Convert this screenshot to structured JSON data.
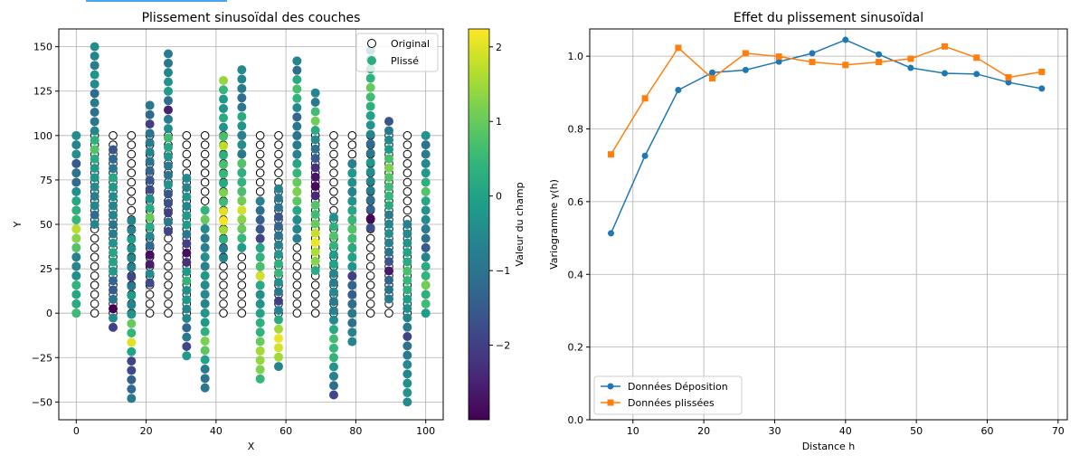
{
  "chart_data": [
    {
      "type": "scatter",
      "title": "Plissement sinusoïdal des couches",
      "xlabel": "X",
      "ylabel": "Y",
      "xlim": [
        -5,
        105
      ],
      "ylim": [
        -60,
        160
      ],
      "xticks": [
        0,
        20,
        40,
        60,
        80,
        100
      ],
      "yticks": [
        -50,
        -25,
        0,
        25,
        50,
        75,
        100,
        125,
        150
      ],
      "grid": true,
      "legend": {
        "placement": "top-right",
        "entries": [
          "Original",
          "Plissé"
        ]
      },
      "original": {
        "marker": "open-circle",
        "x": [
          0,
          5.26,
          10.53,
          15.79,
          21.05,
          26.32,
          31.58,
          36.84,
          42.11,
          47.37,
          52.63,
          57.89,
          63.16,
          68.42,
          73.68,
          78.95,
          84.21,
          89.47,
          94.74,
          100
        ],
        "y": [
          0,
          5.26,
          10.53,
          15.79,
          21.05,
          26.32,
          31.58,
          36.84,
          42.11,
          47.37,
          52.63,
          57.89,
          63.16,
          68.42,
          73.68,
          78.95,
          84.21,
          89.47,
          94.74,
          100
        ]
      },
      "plisse": {
        "marker": "filled-circle",
        "colormap": "viridis",
        "column_y_offset": [
          0,
          50,
          -8,
          -48,
          17,
          46,
          -24,
          -42,
          31,
          37,
          -37,
          -30,
          42,
          24,
          -46,
          -16,
          48,
          8,
          -50,
          0
        ],
        "values": [
          [
            0.6,
            0.2,
            0.1,
            0.4,
            -0.4,
            -0.6,
            -0.7,
            0.8,
            1.3,
            1.7,
            0.5,
            0.3,
            0.1,
            -0.4,
            -1.2,
            -1.0,
            -1.5,
            -0.4,
            -0.6,
            -0.4
          ],
          [
            -0.6,
            -1.2,
            -0.6,
            -0.8,
            -0.5,
            -0.3,
            -0.2,
            0.2,
            0.8,
            0.3,
            -0.6,
            -0.9,
            -1.1,
            -0.8,
            -1.2,
            -0.5,
            -0.3,
            -0.8,
            -0.6,
            -0.4
          ],
          [
            -2.0,
            -0.5,
            -3.0,
            -1.0,
            -1.5,
            -1.3,
            -0.2,
            0.0,
            0.1,
            -0.3,
            -0.8,
            -1.0,
            -0.6,
            -0.6,
            -0.5,
            -0.2,
            0.1,
            -0.9,
            -1.2,
            -1.6
          ],
          [
            -0.9,
            -1.2,
            -1.4,
            -1.8,
            -1.9,
            0.0,
            2.0,
            0.4,
            1.0,
            -0.3,
            -0.6,
            -0.1,
            -0.9,
            -1.9,
            -0.7,
            -0.6,
            -0.4,
            -0.1,
            -0.7,
            -0.6
          ],
          [
            -1.8,
            -0.5,
            -2.6,
            -2.8,
            -1.2,
            -0.6,
            0.2,
            1.0,
            0.2,
            -0.4,
            -1.8,
            -1.6,
            -1.3,
            -1.0,
            -0.6,
            -0.8,
            -1.0,
            -2.0,
            -1.2,
            -0.9
          ],
          [
            -1.9,
            -0.9,
            -2.0,
            -1.7,
            -1.6,
            -0.3,
            -1.0,
            -0.9,
            -0.3,
            0.1,
            0.6,
            -0.4,
            -0.8,
            -2.5,
            -1.1,
            -0.1,
            -0.3,
            -0.6,
            -0.9,
            -0.8
          ],
          [
            -0.2,
            -1.9,
            -0.9,
            -1.3,
            -0.6,
            -0.6,
            -0.2,
            -0.4,
            0.4,
            -0.2,
            -2.3,
            -2.8,
            -2.0,
            -0.9,
            -0.1,
            -0.2,
            -0.6,
            -0.3,
            -0.7,
            -0.5
          ],
          [
            -0.9,
            -1.0,
            -0.8,
            0.0,
            0.9,
            1.2,
            0.3,
            -0.2,
            -0.3,
            -0.6,
            -0.5,
            -0.5,
            -0.2,
            -0.7,
            -0.4,
            -0.7,
            -0.8,
            -0.5,
            1.0,
            0.4
          ],
          [
            -0.6,
            -0.8,
            0.3,
            1.5,
            2.2,
            2.0,
            0.6,
            1.2,
            0.2,
            0.5,
            0.7,
            0.3,
            1.7,
            0.7,
            -0.3,
            0.2,
            -0.3,
            -0.2,
            0.5,
            1.4
          ],
          [
            -0.1,
            0.5,
            1.0,
            1.3,
            1.9,
            1.1,
            0.7,
            0.4,
            0.3,
            0.8,
            -0.9,
            -0.4,
            -0.7,
            -0.3,
            0.2,
            -0.9,
            -1.1,
            -0.8,
            -0.6,
            -0.5
          ],
          [
            0.5,
            1.2,
            1.4,
            1.5,
            1.0,
            0.4,
            0.3,
            0.0,
            -0.3,
            -0.4,
            0.2,
            1.9,
            0.7,
            0.4,
            0.1,
            -1.9,
            -1.6,
            -1.4,
            -1.1,
            -0.7
          ],
          [
            -0.6,
            1.5,
            1.9,
            2.1,
            1.5,
            0.2,
            -0.7,
            -2.0,
            -0.9,
            -0.4,
            0.5,
            0.3,
            -0.3,
            -0.7,
            -1.0,
            -1.3,
            -1.6,
            -1.0,
            -0.9,
            -0.7
          ],
          [
            -0.8,
            -0.6,
            -0.5,
            0.1,
            0.9,
            1.2,
            1.0,
            0.5,
            0.1,
            -0.7,
            -0.8,
            -1.0,
            -0.9,
            -1.3,
            -0.5,
            0.4,
            0.7,
            0.2,
            -1.1,
            -0.6
          ],
          [
            0.2,
            1.3,
            1.6,
            2.1,
            1.8,
            1.0,
            0.6,
            0.8,
            -2.4,
            -2.9,
            -2.7,
            -2.3,
            -1.5,
            -1.0,
            -0.5,
            0.2,
            1.1,
            0.6,
            -0.9,
            -0.6
          ],
          [
            -1.9,
            -1.1,
            -0.7,
            -0.3,
            0.4,
            0.5,
            0.6,
            0.2,
            -0.5,
            -0.7,
            -0.9,
            -0.5,
            -0.8,
            -0.6,
            0.0,
            -0.1,
            0.4,
            0.8,
            0.3,
            -0.4
          ],
          [
            -0.6,
            -0.7,
            -1.1,
            -0.9,
            -1.1,
            -1.4,
            -1.3,
            -2.0,
            -0.3,
            0.0,
            0.2,
            0.6,
            0.8,
            0.5,
            0.1,
            -0.3,
            -0.6,
            -0.4,
            -0.2,
            -0.7
          ],
          [
            -1.7,
            -2.9,
            -1.4,
            -1.1,
            -0.8,
            -0.6,
            -0.4,
            -0.2,
            -0.9,
            -1.2,
            -0.6,
            -0.3,
            0.0,
            0.3,
            0.6,
            1.0,
            0.4,
            0.1,
            -0.4,
            -0.6
          ],
          [
            -0.8,
            -1.0,
            -1.3,
            -2.6,
            -1.6,
            -1.0,
            -0.7,
            -0.4,
            -0.6,
            -0.8,
            0.2,
            0.5,
            0.6,
            0.8,
            1.2,
            0.7,
            -0.2,
            -0.5,
            -0.9,
            -1.6
          ],
          [
            -0.5,
            -0.3,
            -0.4,
            -0.6,
            -0.5,
            -0.8,
            -1.0,
            -1.9,
            -0.9,
            -0.6,
            -0.4,
            -0.1,
            0.3,
            0.5,
            0.7,
            0.2,
            0.0,
            -0.3,
            -0.5,
            -0.7
          ],
          [
            -0.1,
            0.6,
            0.3,
            1.1,
            0.4,
            0.2,
            -0.6,
            -1.5,
            -1.1,
            -0.8,
            -0.5,
            -0.3,
            0.1,
            0.8,
            0.3,
            -0.2,
            -0.5,
            -0.8,
            -1.0,
            -0.3
          ]
        ]
      },
      "colorbar": {
        "label": "Valeur du champ",
        "range": [
          -3.0,
          2.24
        ],
        "ticks": [
          -2,
          -1,
          0,
          1,
          2
        ],
        "tick_labels": [
          "−2",
          "−1",
          "0",
          "1",
          "2"
        ]
      }
    },
    {
      "type": "line",
      "title": "Effet du plissement sinusoïdal",
      "xlabel": "Distance h",
      "ylabel": "Variogramme γ(h)",
      "xlim": [
        3.9,
        71.3
      ],
      "ylim": [
        0,
        1.075
      ],
      "xticks": [
        10,
        20,
        30,
        40,
        50,
        60,
        70
      ],
      "yticks": [
        0.0,
        0.2,
        0.4,
        0.6,
        0.8,
        1.0
      ],
      "ytick_labels": [
        "0.0",
        "0.2",
        "0.4",
        "0.6",
        "0.8",
        "1.0"
      ],
      "grid": true,
      "legend": {
        "placement": "bottom-left"
      },
      "series": [
        {
          "name": "Données Déposition",
          "color": "#1f77b4",
          "marker": "circle",
          "x": [
            6.9,
            11.7,
            16.4,
            21.2,
            25.9,
            30.6,
            35.3,
            40.0,
            44.7,
            49.2,
            54.0,
            58.5,
            63.0,
            67.7
          ],
          "y": [
            0.513,
            0.726,
            0.907,
            0.955,
            0.962,
            0.985,
            1.008,
            1.045,
            1.005,
            0.968,
            0.953,
            0.951,
            0.928,
            0.911
          ]
        },
        {
          "name": "Données plissées",
          "color": "#ff7f0e",
          "marker": "square",
          "x": [
            6.9,
            11.7,
            16.4,
            21.2,
            25.9,
            30.6,
            35.3,
            40.0,
            44.7,
            49.2,
            54.0,
            58.5,
            63.0,
            67.7
          ],
          "y": [
            0.73,
            0.884,
            1.023,
            0.939,
            1.008,
            0.999,
            0.984,
            0.976,
            0.984,
            0.993,
            1.027,
            0.996,
            0.942,
            0.957
          ]
        }
      ]
    }
  ]
}
